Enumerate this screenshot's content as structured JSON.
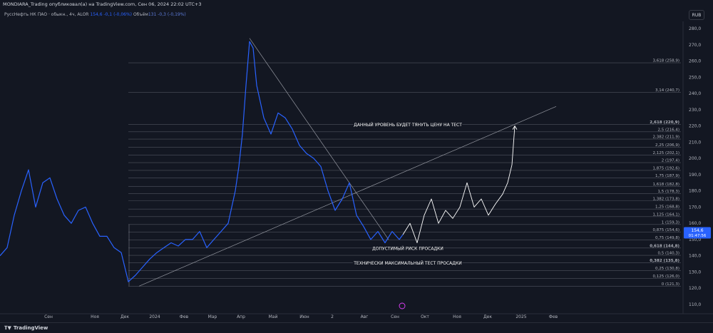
{
  "header": {
    "publisher_line": "MONDIARA_Trading опубликовал(а) на TradingView.com, Сен 06, 2024 22:02 UTC+3",
    "symbol": "РуссНефть НК ПАО · обыкн., 4ч, ALOR",
    "price_value": "154,6",
    "price_change": "-0,1 (-0,06%)",
    "volume_label": "Объём",
    "volume_value": "131",
    "volume_change": "-0,3 (-0,19%)"
  },
  "currency": "RUB",
  "footer": {
    "brand": "TradingView",
    "logo_icon": "tradingview-logo-icon"
  },
  "colors": {
    "background": "#131722",
    "price_line": "#2962ff",
    "projection": "#ffffff",
    "fib_line": "#787b86",
    "price_label_bg": "#2962ff"
  },
  "chart_data": {
    "type": "line",
    "y_axis": {
      "range": [
        105,
        285
      ],
      "ticks": [
        "280,0",
        "270,0",
        "260,0",
        "250,0",
        "240,0",
        "230,0",
        "220,0",
        "210,0",
        "200,0",
        "190,0",
        "180,0",
        "170,0",
        "160,0",
        "150,0",
        "140,0",
        "130,0",
        "120,0",
        "110,0"
      ]
    },
    "x_axis": {
      "ticks": [
        "Сен",
        "Ноя",
        "Дек",
        "2024",
        "Фев",
        "Мар",
        "Апр",
        "Май",
        "Июн",
        "2",
        "Авг",
        "Сен",
        "Окт",
        "Ноя",
        "Дек",
        "2025",
        "Фев"
      ]
    },
    "price_series": {
      "name": "РуссНефть НК ПАО",
      "x": [
        0,
        10,
        20,
        30,
        40,
        50,
        60,
        70,
        80,
        90,
        100,
        110,
        120,
        130,
        140,
        150,
        160,
        170,
        175,
        180,
        190,
        200,
        210,
        220,
        230,
        240,
        250,
        260,
        270,
        280,
        290,
        300,
        310,
        320,
        330,
        335,
        340,
        345,
        350,
        355,
        360,
        370,
        380,
        390,
        400,
        410,
        420,
        430,
        440,
        450,
        460,
        470,
        480,
        490,
        500,
        510,
        520,
        530,
        540,
        550,
        560,
        565
      ],
      "y": [
        140,
        145,
        165,
        180,
        193,
        170,
        185,
        188,
        175,
        165,
        160,
        168,
        170,
        160,
        152,
        152,
        145,
        142,
        133,
        124,
        128,
        133,
        138,
        142,
        145,
        148,
        146,
        150,
        150,
        155,
        145,
        150,
        155,
        160,
        180,
        195,
        215,
        245,
        272,
        268,
        245,
        225,
        215,
        228,
        225,
        218,
        208,
        203,
        200,
        195,
        180,
        168,
        175,
        185,
        165,
        158,
        150,
        155,
        148,
        155,
        150,
        153
      ]
    },
    "projection_series": {
      "x": [
        565,
        575,
        585,
        595,
        605,
        615,
        625,
        635,
        645,
        655,
        665,
        675,
        685,
        695,
        705,
        712,
        718,
        722
      ],
      "y": [
        153,
        160,
        148,
        165,
        175,
        160,
        168,
        163,
        170,
        185,
        170,
        175,
        165,
        172,
        178,
        185,
        196,
        220
      ]
    },
    "current_price": {
      "value": "154,6",
      "countdown": "01:47:56"
    },
    "fib_levels": [
      {
        "label": "3,618 (258,9)",
        "value": 258.9,
        "bold": false
      },
      {
        "label": "3,14 (240,7)",
        "value": 240.7,
        "bold": false
      },
      {
        "label": "2,618 (220,9)",
        "value": 220.9,
        "bold": true
      },
      {
        "label": "2,5 (216,4)",
        "value": 216.4,
        "bold": false
      },
      {
        "label": "2,382 (211,9)",
        "value": 211.9,
        "bold": false
      },
      {
        "label": "2,25 (206,9)",
        "value": 206.9,
        "bold": false
      },
      {
        "label": "2,125 (202,1)",
        "value": 202.1,
        "bold": false
      },
      {
        "label": "2 (197,4)",
        "value": 197.4,
        "bold": false
      },
      {
        "label": "1,875 (192,6)",
        "value": 192.6,
        "bold": false
      },
      {
        "label": "1,75 (187,9)",
        "value": 187.9,
        "bold": false
      },
      {
        "label": "1,618 (182,8)",
        "value": 182.8,
        "bold": false
      },
      {
        "label": "1,5 (178,3)",
        "value": 178.3,
        "bold": false
      },
      {
        "label": "1,382 (173,8)",
        "value": 173.8,
        "bold": false
      },
      {
        "label": "1,25 (168,8)",
        "value": 168.8,
        "bold": false
      },
      {
        "label": "1,125 (164,1)",
        "value": 164.1,
        "bold": false
      },
      {
        "label": "1 (159,3)",
        "value": 159.3,
        "bold": false
      },
      {
        "label": "0,875 (154,6)",
        "value": 154.6,
        "bold": false
      },
      {
        "label": "0,75 (149,8)",
        "value": 149.8,
        "bold": false
      },
      {
        "label": "0,618 (144,8)",
        "value": 144.8,
        "bold": true
      },
      {
        "label": "0,5 (140,3)",
        "value": 140.3,
        "bold": false
      },
      {
        "label": "0,382 (135,8)",
        "value": 135.8,
        "bold": true
      },
      {
        "label": "0,25 (130,8)",
        "value": 130.8,
        "bold": false
      },
      {
        "label": "0,125 (126,0)",
        "value": 126.0,
        "bold": false
      },
      {
        "label": "0 (121,3)",
        "value": 121.3,
        "bold": false
      }
    ],
    "annotations": [
      {
        "text": "ДАННЫЙ УРОВЕНЬ БУДЕТ ТЯНУТЬ ЦЕНУ НА ТЕСТ",
        "value": 220.9
      },
      {
        "text": "ДОПУСТИМЫЙ РИСК ПРОСАДКИ",
        "value": 144.8
      },
      {
        "text": "ТЕХНИЧЕСКИ МАКСИМАЛЬНЫЙ ТЕСТ ПРОСАДКИ",
        "value": 135.8
      }
    ],
    "trendlines": [
      {
        "name": "rising-trendline",
        "from": [
          195,
          121.3
        ],
        "to": [
          780,
          232
        ]
      },
      {
        "name": "falling-trendline",
        "from": [
          350,
          274
        ],
        "to": [
          545,
          150
        ]
      }
    ]
  }
}
